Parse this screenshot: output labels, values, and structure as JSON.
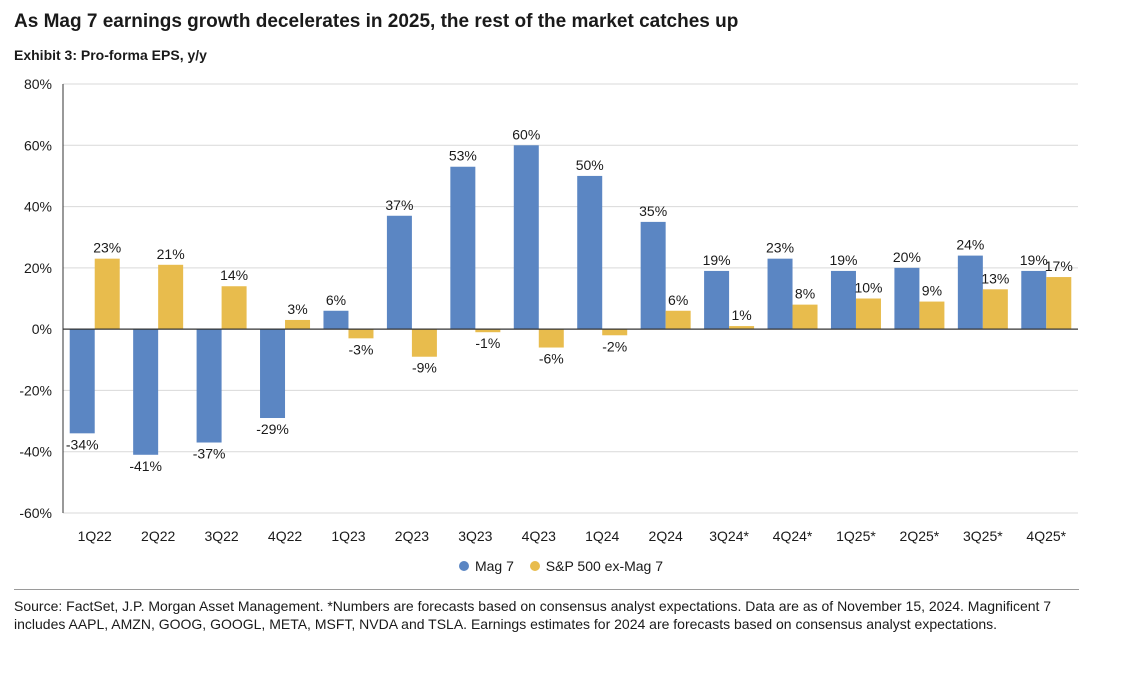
{
  "header": {
    "title": "As Mag 7 earnings growth decelerates in 2025, the rest of the market catches up",
    "subtitle": "Exhibit 3: Pro-forma EPS, y/y"
  },
  "colors": {
    "mag7": "#5b86c3",
    "ex_mag7": "#e8bc4d",
    "grid": "#d9d9d9",
    "axis": "#333333"
  },
  "legend": {
    "mag7": "Mag 7",
    "ex_mag7": "S&P 500 ex-Mag 7"
  },
  "footer": {
    "source": "Source: FactSet, J.P. Morgan Asset Management. *Numbers are forecasts based on consensus analyst expectations. Data are as of November 15, 2024. Magnificent 7 includes AAPL, AMZN, GOOG, GOOGL, META, MSFT, NVDA and TSLA. Earnings estimates for 2024 are forecasts based on consensus analyst expectations."
  },
  "chart_data": {
    "type": "bar",
    "categories": [
      "1Q22",
      "2Q22",
      "3Q22",
      "4Q22",
      "1Q23",
      "2Q23",
      "3Q23",
      "4Q23",
      "1Q24",
      "2Q24",
      "3Q24*",
      "4Q24*",
      "1Q25*",
      "2Q25*",
      "3Q25*",
      "4Q25*"
    ],
    "series": [
      {
        "name": "Mag 7",
        "color": "#5b86c3",
        "values": [
          -34,
          -41,
          -37,
          -29,
          6,
          37,
          53,
          60,
          50,
          35,
          19,
          23,
          19,
          20,
          24,
          19
        ]
      },
      {
        "name": "S&P 500 ex-Mag 7",
        "color": "#e8bc4d",
        "values": [
          23,
          21,
          14,
          3,
          -3,
          -9,
          -1,
          -6,
          -2,
          6,
          1,
          8,
          10,
          9,
          13,
          17
        ]
      }
    ],
    "ylim": [
      -60,
      80
    ],
    "yticks": [
      -60,
      -40,
      -20,
      0,
      20,
      40,
      60,
      80
    ],
    "ytick_format": "%",
    "data_label_format": "%",
    "grid": true,
    "legend_position": "bottom-center"
  }
}
